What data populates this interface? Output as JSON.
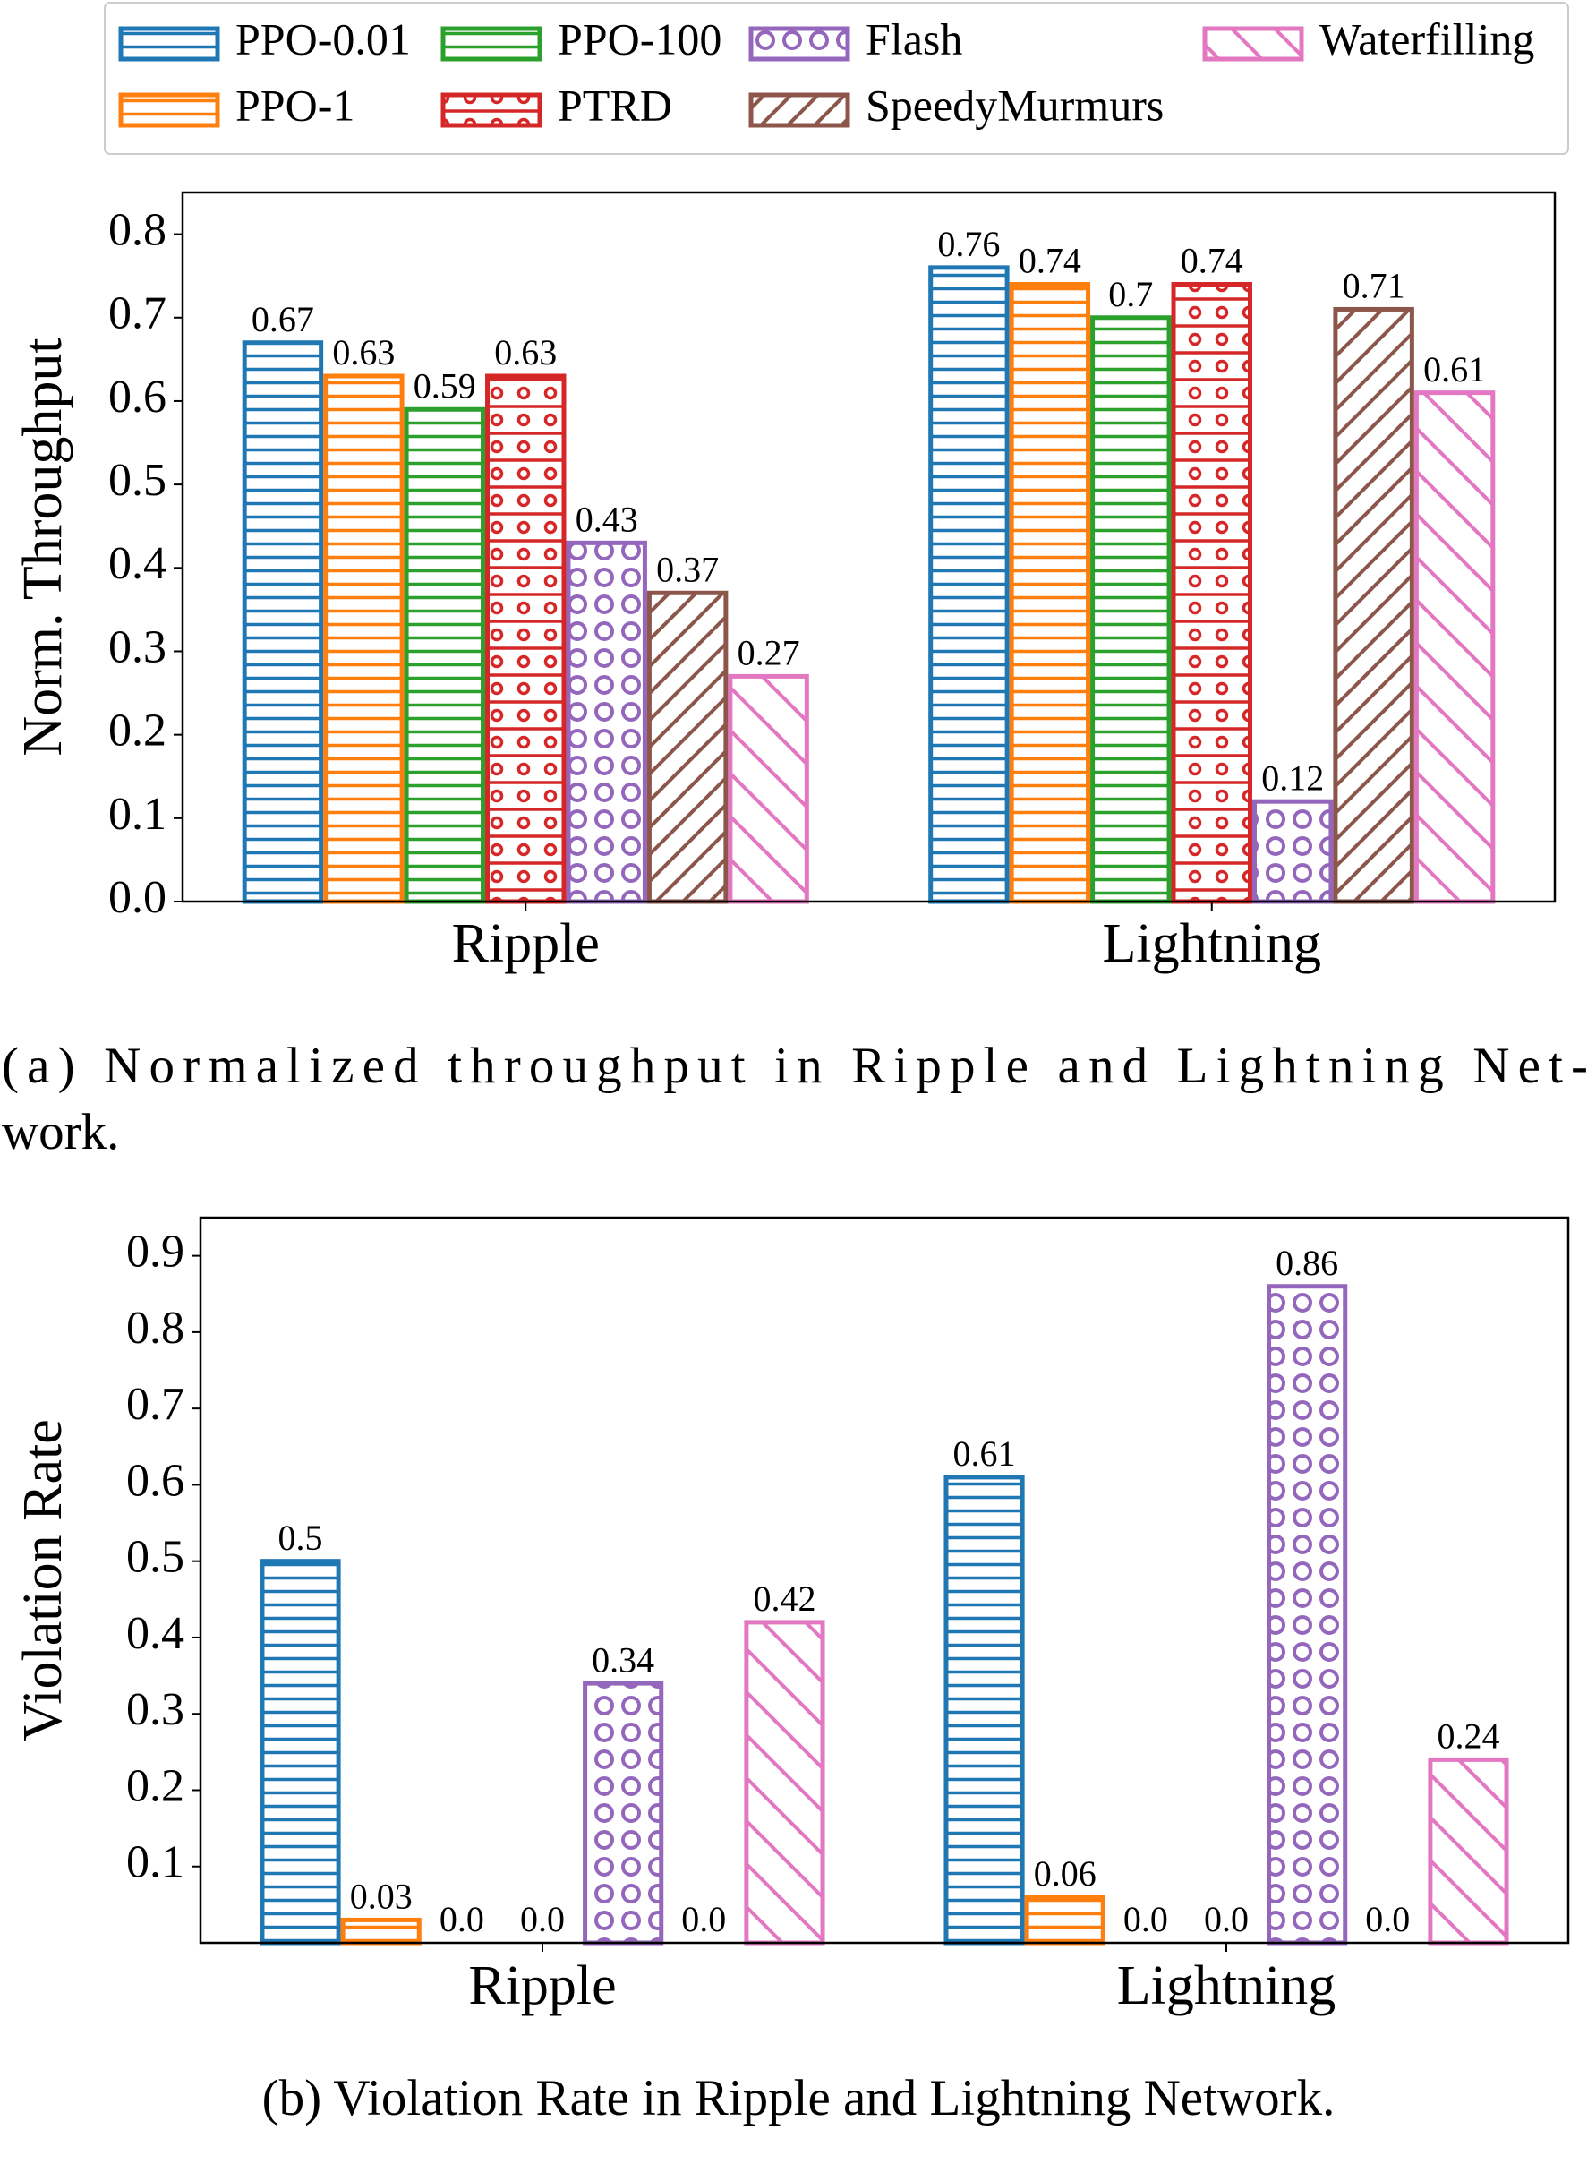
{
  "chart_data": [
    {
      "type": "bar",
      "y_label": "Norm. Throughput",
      "caption": [
        "(a) Normalized throughput in Ripple and Lightning Net-",
        "work."
      ],
      "categories": [
        "Ripple",
        "Lightning"
      ],
      "ylim": [
        0,
        0.85
      ],
      "yticks": [
        {
          "value": 0,
          "label": "0.0"
        },
        0.1,
        0.2,
        0.3,
        0.4,
        0.5,
        0.6,
        0.7,
        0.8
      ],
      "legend": "upper center",
      "series": [
        {
          "name": "PPO-0.01",
          "color": "#1f77b4",
          "hatch": "-",
          "values": [
            0.67,
            0.76
          ]
        },
        {
          "name": "PPO-1",
          "color": "#ff7f0e",
          "hatch": "-",
          "values": [
            0.63,
            0.74
          ]
        },
        {
          "name": "PPO-100",
          "color": "#2ca02c",
          "hatch": "-",
          "values": [
            0.59,
            0.7
          ]
        },
        {
          "name": "PTRD",
          "color": "#d62728",
          "hatch": "-o",
          "values": [
            0.63,
            0.74
          ]
        },
        {
          "name": "Flash",
          "color": "#9467bd",
          "hatch": "O",
          "values": [
            0.43,
            0.12
          ]
        },
        {
          "name": "SpeedyMurmurs",
          "color": "#8c564b",
          "hatch": "//",
          "values": [
            0.37,
            0.71
          ]
        },
        {
          "name": "Waterfilling",
          "color": "#e377c2",
          "hatch": "\\",
          "values": [
            0.27,
            0.61
          ]
        }
      ]
    },
    {
      "type": "bar",
      "y_label": "Violation Rate",
      "caption": [
        "(b) Violation Rate in Ripple and Lightning Network."
      ],
      "categories": [
        "Ripple",
        "Lightning"
      ],
      "ylim": [
        0,
        0.95
      ],
      "yticks": [
        0.1,
        0.2,
        0.3,
        0.4,
        0.5,
        0.6,
        0.7,
        0.8,
        0.9
      ],
      "series": [
        {
          "color": "#1f77b4",
          "hatch": "-",
          "values": [
            0.5,
            0.61
          ]
        },
        {
          "color": "#ff7f0e",
          "hatch": "-",
          "values": [
            0.03,
            0.06
          ]
        },
        {
          "color": "#2ca02c",
          "hatch": "-",
          "values": [
            0,
            0
          ],
          "value_labels": [
            "0.0",
            "0.0"
          ]
        },
        {
          "color": "#d62728",
          "hatch": "-o",
          "values": [
            0,
            0
          ],
          "value_labels": [
            "0.0",
            "0.0"
          ]
        },
        {
          "color": "#9467bd",
          "hatch": "O",
          "values": [
            0.34,
            0.86
          ]
        },
        {
          "color": "#8c564b",
          "hatch": "//",
          "values": [
            0,
            0
          ],
          "value_labels": [
            "0.0",
            "0.0"
          ]
        },
        {
          "color": "#e377c2",
          "hatch": "\\",
          "values": [
            0.42,
            0.24
          ]
        }
      ]
    }
  ]
}
